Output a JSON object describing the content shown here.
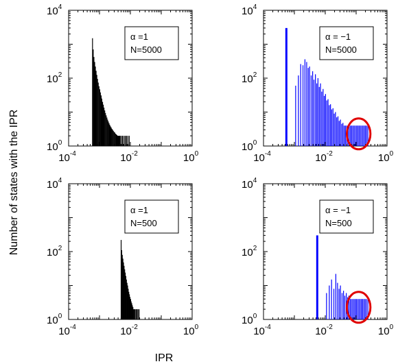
{
  "figure": {
    "ylabel": "Number of states with the IPR",
    "xlabel": "IPR"
  },
  "chart_data": [
    {
      "type": "bar",
      "panel": "top-left",
      "xscale": "log",
      "yscale": "log",
      "xlim": [
        0.0001,
        1
      ],
      "ylim": [
        1,
        10000
      ],
      "xticks": [
        {
          "base": "10",
          "exp": "-4"
        },
        {
          "base": "10",
          "exp": "-2"
        },
        {
          "base": "10",
          "exp": "0"
        }
      ],
      "yticks": [
        {
          "base": "10",
          "exp": "0"
        },
        {
          "base": "10",
          "exp": "2"
        },
        {
          "base": "10",
          "exp": "4"
        }
      ],
      "annotation": [
        "α =1",
        "N=5000"
      ],
      "bar_color": "#000000",
      "highlight": null,
      "x": [
        0.000594,
        0.000627,
        0.000661,
        0.000698,
        0.000736,
        0.000777,
        0.00082,
        0.000865,
        0.000912,
        0.000963,
        0.00102,
        0.00107,
        0.00113,
        0.00119,
        0.00126,
        0.00133,
        0.0014,
        0.00148,
        0.00156,
        0.00165,
        0.00174,
        0.00183,
        0.00193,
        0.00204,
        0.00215,
        0.00227,
        0.0024,
        0.00253,
        0.00267,
        0.00281,
        0.00297,
        0.00313,
        0.0033,
        0.00349,
        0.00368,
        0.00388,
        0.00409,
        0.00432,
        0.00456,
        0.00481,
        0.00533,
        0.00566,
        0.0063,
        0.0069,
        0.0075,
        0.0083,
        0.0092
      ],
      "values": [
        1500,
        700,
        420,
        300,
        220,
        165,
        125,
        95,
        74,
        58,
        47,
        38,
        31,
        25,
        20,
        16.5,
        13.5,
        11.2,
        9.4,
        8,
        6.9,
        6,
        5.3,
        4.7,
        4.2,
        3.8,
        3.5,
        3.2,
        3,
        2.8,
        2.6,
        2.5,
        2.3,
        2.2,
        2.1,
        2,
        2,
        2,
        2,
        2,
        2,
        2,
        2,
        2,
        2,
        2,
        2
      ]
    },
    {
      "type": "bar",
      "panel": "top-right",
      "xscale": "log",
      "yscale": "log",
      "xlim": [
        0.0001,
        1
      ],
      "ylim": [
        1,
        10000
      ],
      "xticks": [
        {
          "base": "10",
          "exp": "-4"
        },
        {
          "base": "10",
          "exp": "-2"
        },
        {
          "base": "10",
          "exp": "0"
        }
      ],
      "yticks": [
        {
          "base": "10",
          "exp": "0"
        },
        {
          "base": "10",
          "exp": "2"
        },
        {
          "base": "10",
          "exp": "4"
        }
      ],
      "annotation": [
        "α = −1",
        "N=5000"
      ],
      "bar_color": "#0000ff",
      "highlight": {
        "shape": "ellipse",
        "color": "#e00000",
        "x_range": [
          0.05,
          0.29
        ],
        "y_range": [
          0.8,
          6.5
        ]
      },
      "x": [
        0.00055,
        0.0011,
        0.00135,
        0.0016,
        0.0019,
        0.0022,
        0.0025,
        0.0028,
        0.0031,
        0.0035,
        0.0039,
        0.0043,
        0.0048,
        0.0053,
        0.0058,
        0.0064,
        0.007,
        0.0077,
        0.0085,
        0.0093,
        0.0102,
        0.0112,
        0.0123,
        0.0135,
        0.0148,
        0.0162,
        0.0178,
        0.0195,
        0.0214,
        0.0235,
        0.0258,
        0.0283,
        0.0311,
        0.0341,
        0.0374,
        0.041,
        0.045,
        0.0494,
        0.0542,
        0.0595,
        0.0653,
        0.0716,
        0.0786,
        0.0862,
        0.0946,
        0.1038,
        0.1139,
        0.125,
        0.1372,
        0.1505,
        0.1652,
        0.1813,
        0.199,
        0.2184,
        0.2397
      ],
      "values": [
        3000,
        60,
        120,
        260,
        240,
        360,
        300,
        200,
        220,
        120,
        160,
        90,
        130,
        70,
        100,
        55,
        70,
        40,
        48,
        30,
        34,
        22,
        24,
        16,
        17,
        12,
        13,
        9,
        10,
        7,
        7.5,
        5.5,
        6,
        4.5,
        4.8,
        4,
        4,
        4,
        4,
        4,
        4,
        4,
        4,
        4,
        4,
        4,
        4,
        4,
        4,
        4,
        4,
        4,
        4,
        4,
        4
      ]
    },
    {
      "type": "bar",
      "panel": "bottom-left",
      "xscale": "log",
      "yscale": "log",
      "xlim": [
        0.0001,
        1
      ],
      "ylim": [
        1,
        10000
      ],
      "xticks": [
        {
          "base": "10",
          "exp": "-4"
        },
        {
          "base": "10",
          "exp": "-2"
        },
        {
          "base": "10",
          "exp": "0"
        }
      ],
      "yticks": [
        {
          "base": "10",
          "exp": "0"
        },
        {
          "base": "10",
          "exp": "2"
        },
        {
          "base": "10",
          "exp": "4"
        }
      ],
      "annotation": [
        "α =1",
        "N=500"
      ],
      "bar_color": "#000000",
      "highlight": null,
      "x": [
        0.00502,
        0.00525,
        0.00548,
        0.00573,
        0.00599,
        0.00626,
        0.00654,
        0.00683,
        0.00714,
        0.00746,
        0.0078,
        0.00815,
        0.00852,
        0.0089,
        0.0093,
        0.00972,
        0.0102,
        0.0106,
        0.0111,
        0.0116,
        0.0121,
        0.0127,
        0.0133,
        0.0141,
        0.0152,
        0.0163,
        0.0176,
        0.0191
      ],
      "values": [
        220,
        110,
        80,
        62,
        48,
        38,
        30,
        24,
        19,
        15,
        12,
        10,
        8,
        6.5,
        5.5,
        4.6,
        4,
        3.4,
        3,
        2.6,
        2.3,
        2,
        2,
        2,
        2,
        2,
        2,
        2
      ]
    },
    {
      "type": "bar",
      "panel": "bottom-right",
      "xscale": "log",
      "yscale": "log",
      "xlim": [
        0.0001,
        1
      ],
      "ylim": [
        1,
        10000
      ],
      "xticks": [
        {
          "base": "10",
          "exp": "-4"
        },
        {
          "base": "10",
          "exp": "-2"
        },
        {
          "base": "10",
          "exp": "0"
        }
      ],
      "yticks": [
        {
          "base": "10",
          "exp": "0"
        },
        {
          "base": "10",
          "exp": "2"
        },
        {
          "base": "10",
          "exp": "4"
        }
      ],
      "annotation": [
        "α = −1",
        "N=500"
      ],
      "bar_color": "#0000ff",
      "highlight": {
        "shape": "ellipse",
        "color": "#e00000",
        "x_range": [
          0.05,
          0.29
        ],
        "y_range": [
          0.8,
          6.5
        ]
      },
      "x": [
        0.0055,
        0.011,
        0.0135,
        0.016,
        0.019,
        0.022,
        0.025,
        0.028,
        0.031,
        0.035,
        0.039,
        0.043,
        0.048,
        0.053,
        0.058,
        0.064,
        0.07,
        0.077,
        0.085,
        0.093,
        0.102,
        0.112,
        0.123,
        0.135,
        0.148,
        0.162,
        0.178,
        0.195,
        0.214,
        0.2397
      ],
      "values": [
        300,
        6,
        10,
        15,
        8,
        22,
        12,
        8,
        10,
        6,
        7,
        5,
        6,
        4.5,
        5,
        4,
        4,
        4,
        4,
        4,
        4,
        4,
        4,
        4,
        4,
        4,
        4,
        4,
        4,
        4
      ]
    }
  ]
}
